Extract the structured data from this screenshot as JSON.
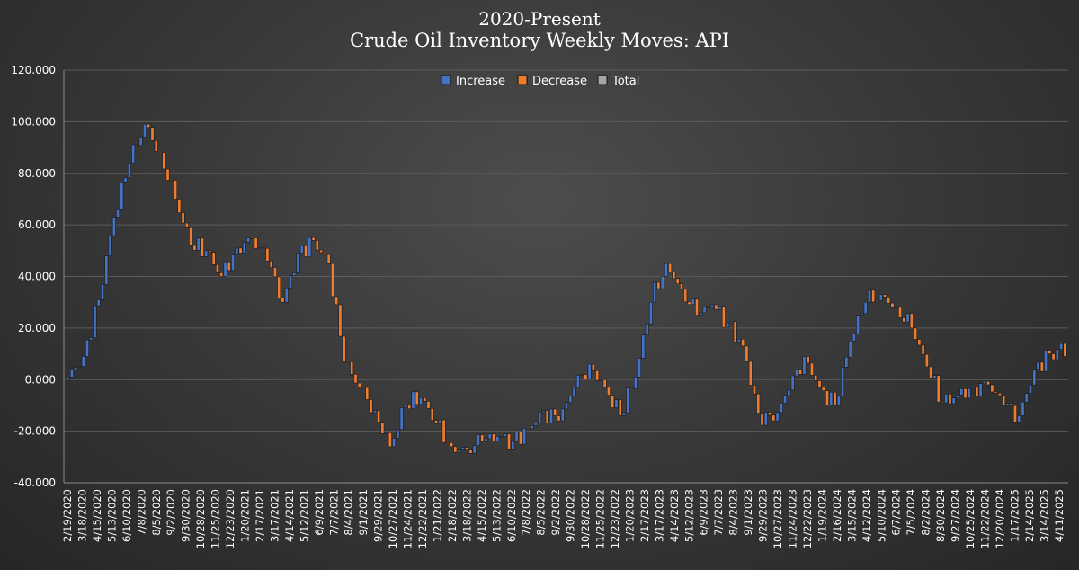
{
  "chart_data": {
    "type": "bar",
    "subtype": "waterfall",
    "title": "2020-Present",
    "subtitle": "Crude Oil Inventory Weekly Moves: API",
    "xlabel": "",
    "ylabel": "",
    "ylim": [
      -40,
      120
    ],
    "yticks": [
      "120.000",
      "100.000",
      "80.000",
      "60.000",
      "40.000",
      "20.000",
      "0.000",
      "-20.000",
      "-40.000"
    ],
    "grid": true,
    "legend_position": "top-center",
    "legend": [
      {
        "name": "Increase",
        "color": "#4472c4"
      },
      {
        "name": "Decrease",
        "color": "#ed7d31"
      },
      {
        "name": "Total",
        "color": "#a5a5a5"
      }
    ],
    "x_tick_labels": [
      "2/19/2020",
      "3/18/2020",
      "4/15/2020",
      "5/13/2020",
      "6/10/2020",
      "7/8/2020",
      "8/5/2020",
      "9/2/2020",
      "9/30/2020",
      "10/28/2020",
      "11/25/2020",
      "12/23/2020",
      "1/20/2021",
      "2/17/2021",
      "3/17/2021",
      "4/14/2021",
      "5/12/2021",
      "6/9/2021",
      "7/7/2021",
      "8/4/2021",
      "9/1/2021",
      "9/29/2021",
      "10/27/2021",
      "11/24/2021",
      "12/22/2021",
      "1/21/2022",
      "2/18/2022",
      "3/18/2022",
      "4/15/2022",
      "5/13/2022",
      "6/10/2022",
      "7/8/2022",
      "8/5/2022",
      "9/2/2022",
      "9/30/2022",
      "10/28/2022",
      "11/25/2022",
      "12/23/2022",
      "1/20/2023",
      "2/17/2023",
      "3/17/2023",
      "4/14/2023",
      "5/12/2023",
      "6/9/2023",
      "7/7/2023",
      "8/4/2023",
      "9/1/2023",
      "9/29/2023",
      "10/27/2023",
      "11/24/2023",
      "12/22/2023",
      "1/19/2024",
      "2/16/2024",
      "3/15/2024",
      "4/12/2024",
      "5/10/2024",
      "6/7/2024",
      "7/5/2024",
      "8/2/2024",
      "8/30/2024",
      "9/27/2024",
      "10/25/2024",
      "11/22/2024",
      "12/20/2024",
      "1/17/2025",
      "2/14/2025",
      "3/14/2025",
      "4/11/2025"
    ],
    "cumulative_anchors": [
      1,
      9,
      31,
      63,
      84,
      99,
      88,
      70,
      52,
      50,
      40,
      51,
      55,
      46,
      30,
      49,
      54,
      45,
      7,
      -3,
      -12,
      -26,
      -10,
      -7,
      -17,
      -26,
      -27,
      -24,
      -22,
      -24,
      -19,
      -12,
      -16,
      -3,
      6,
      -3,
      -14,
      1,
      30,
      45,
      35,
      25,
      29,
      22,
      13,
      -13,
      -16,
      -4,
      9,
      -3,
      -10,
      15,
      30,
      33,
      28,
      20,
      5,
      -9,
      -6,
      -3,
      -2,
      -10,
      -14,
      4,
      10,
      11
    ]
  },
  "icons": {
    "legend_swatch": "square-swatch-icon"
  }
}
